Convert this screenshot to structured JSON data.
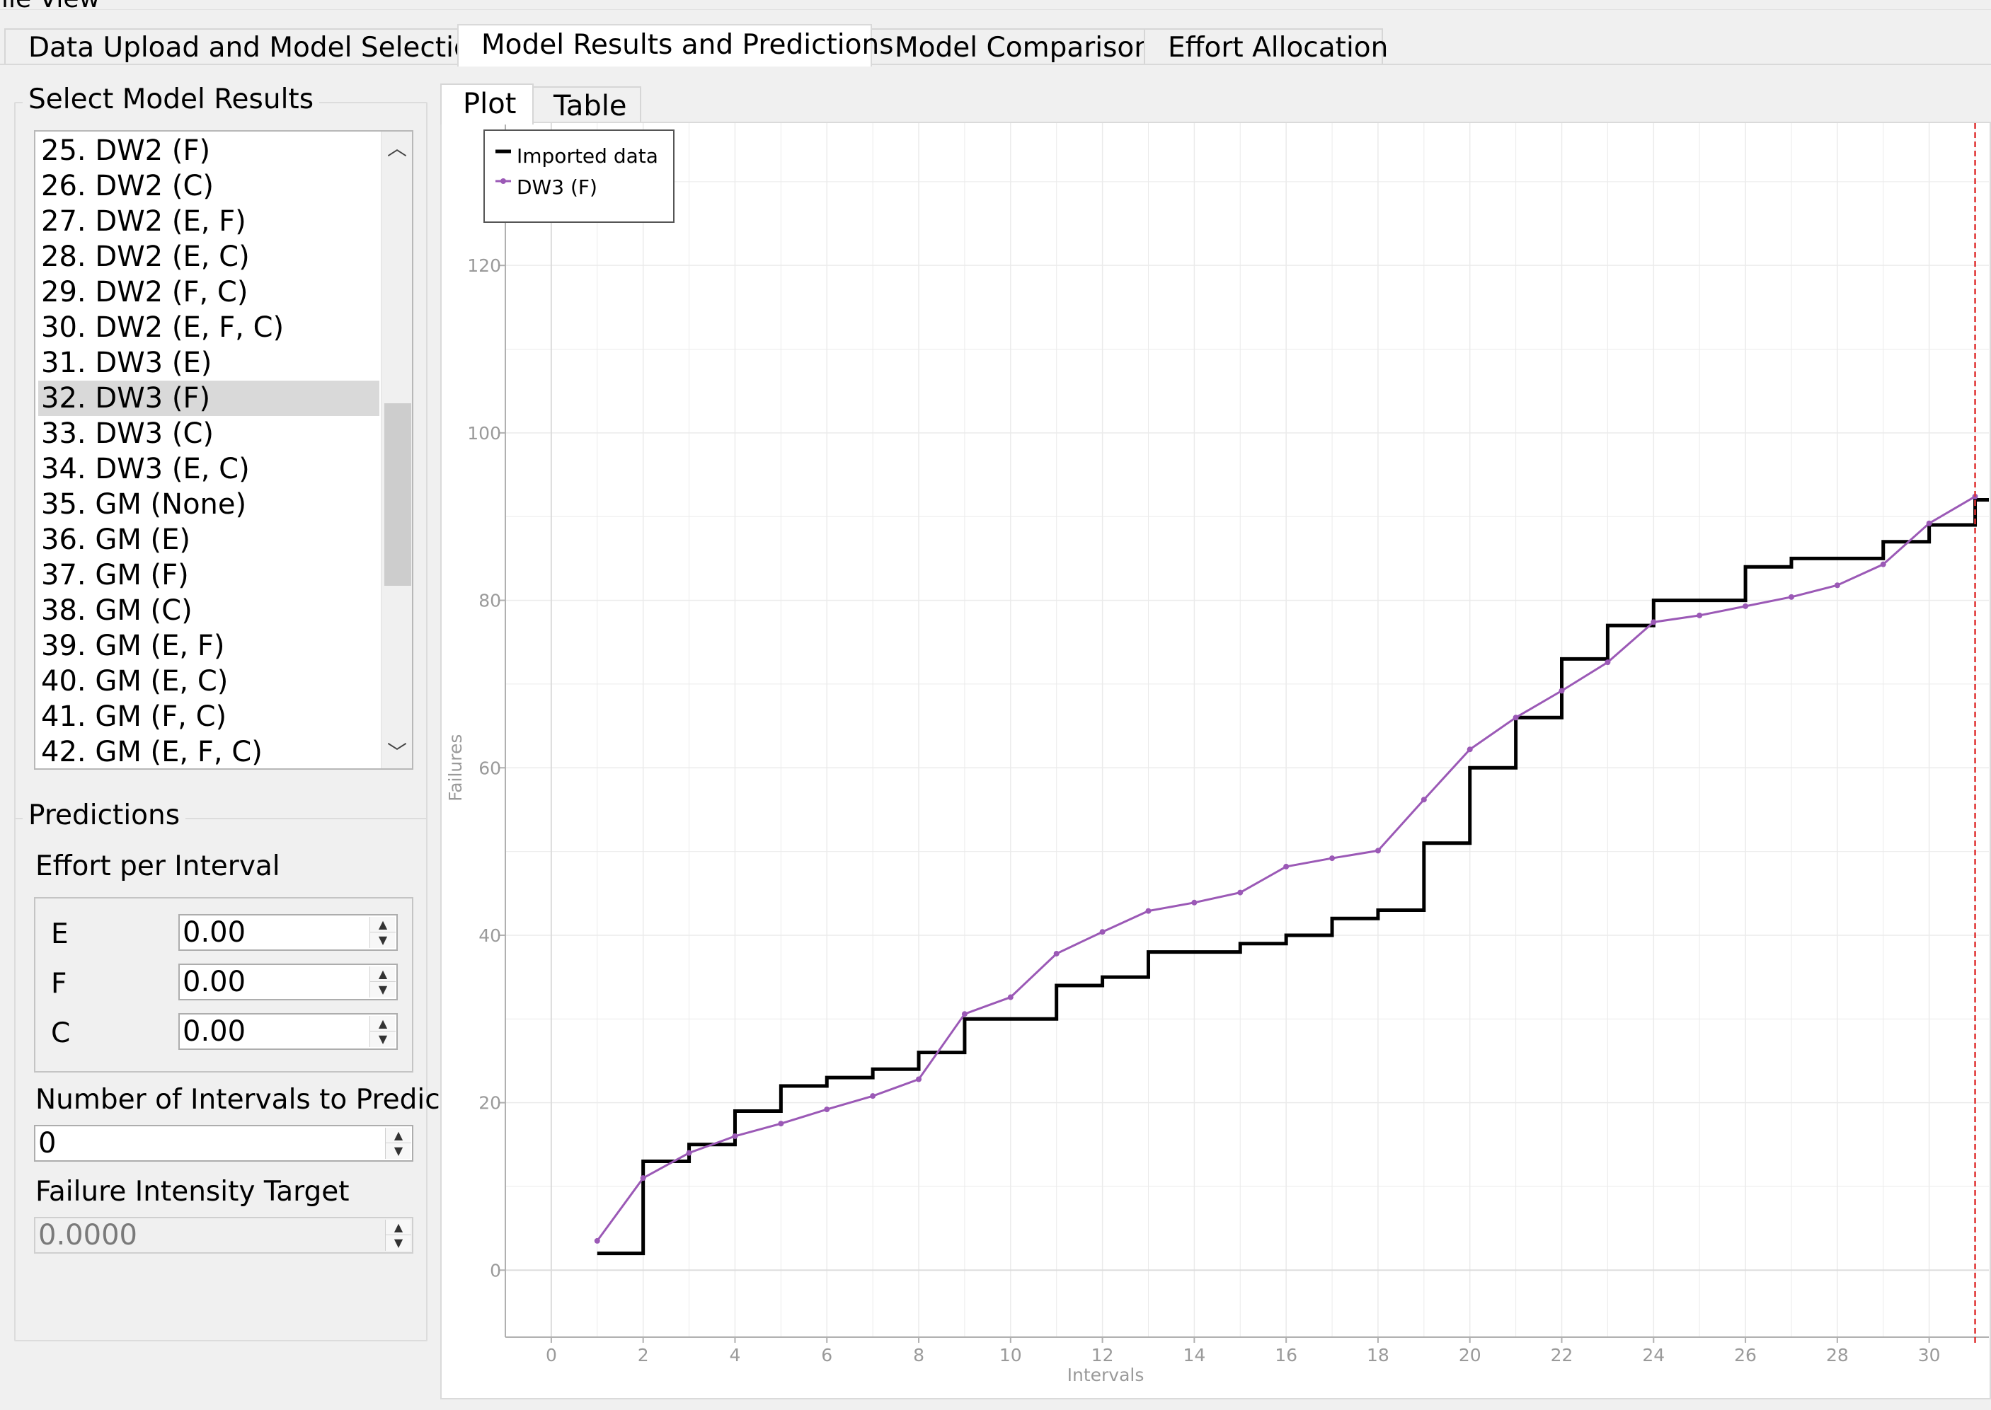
{
  "menubar": {
    "partial_text": "ile View"
  },
  "main_tabs": [
    {
      "label": "Data Upload and Model Selection",
      "active": false
    },
    {
      "label": "Model Results and Predictions",
      "active": true
    },
    {
      "label": "Model Comparison",
      "active": false
    },
    {
      "label": "Effort Allocation",
      "active": false
    }
  ],
  "model_results": {
    "title": "Select Model Results",
    "items": [
      "25. DW2 (F)",
      "26. DW2 (C)",
      "27. DW2 (E, F)",
      "28. DW2 (E, C)",
      "29. DW2 (F, C)",
      "30. DW2 (E, F, C)",
      "31. DW3 (E)",
      "32. DW3 (F)",
      "33. DW3 (C)",
      "34. DW3 (E, C)",
      "35. GM (None)",
      "36. GM (E)",
      "37. GM (F)",
      "38. GM (C)",
      "39. GM (E, F)",
      "40. GM (E, C)",
      "41. GM (F, C)",
      "42. GM (E, F, C)"
    ],
    "selected_index": 7
  },
  "predictions": {
    "title": "Predictions",
    "effort_label": "Effort per Interval",
    "effort_fields": [
      {
        "label": "E",
        "value": "0.00"
      },
      {
        "label": "F",
        "value": "0.00"
      },
      {
        "label": "C",
        "value": "0.00"
      }
    ],
    "intervals_label": "Number of Intervals to Predict",
    "intervals_value": "0",
    "intensity_label": "Failure Intensity Target",
    "intensity_value": "0.0000"
  },
  "sub_tabs": [
    {
      "label": "Plot",
      "active": true
    },
    {
      "label": "Table",
      "active": false
    }
  ],
  "colors": {
    "imported": "#000000",
    "model": "#9b59b6",
    "marker_line": "#e03030",
    "grid": "#ebebeb",
    "axis_text": "#9a9a9a"
  },
  "chart_data": {
    "type": "line",
    "xlabel": "Intervals",
    "ylabel": "Failures",
    "xlim": [
      -1,
      31.3
    ],
    "ylim": [
      -8,
      137
    ],
    "xticks": [
      0,
      2,
      4,
      6,
      8,
      10,
      12,
      14,
      16,
      18,
      20,
      22,
      24,
      26,
      28,
      30
    ],
    "yticks": [
      0,
      20,
      40,
      60,
      80,
      100,
      120
    ],
    "grid": true,
    "legend": "top-left",
    "vertical_marker": 31,
    "series": [
      {
        "name": "Imported data",
        "style": "step",
        "x": [
          1,
          2,
          3,
          4,
          5,
          6,
          7,
          8,
          9,
          10,
          11,
          12,
          13,
          14,
          15,
          16,
          17,
          18,
          19,
          20,
          21,
          22,
          23,
          24,
          25,
          26,
          27,
          28,
          29,
          30,
          31
        ],
        "y": [
          2,
          13,
          15,
          19,
          22,
          23,
          24,
          26,
          30,
          30,
          34,
          35,
          38,
          38,
          39,
          40,
          42,
          43,
          51,
          60,
          66,
          73,
          77,
          80,
          80,
          84,
          85,
          85,
          87,
          89,
          92
        ]
      },
      {
        "name": "DW3 (F)",
        "style": "line-markers",
        "x": [
          1,
          2,
          3,
          4,
          5,
          6,
          7,
          8,
          9,
          10,
          11,
          12,
          13,
          14,
          15,
          16,
          17,
          18,
          19,
          20,
          21,
          22,
          23,
          24,
          25,
          26,
          27,
          28,
          29,
          30,
          31
        ],
        "y": [
          3.5,
          11,
          14,
          16,
          17.5,
          19.2,
          20.8,
          22.8,
          30.6,
          32.6,
          37.8,
          40.4,
          42.9,
          43.9,
          45.1,
          48.2,
          49.2,
          50.1,
          56.2,
          62.2,
          66,
          69.2,
          72.6,
          77.4,
          78.2,
          79.3,
          80.4,
          81.8,
          84.3,
          89.2,
          92.4
        ]
      }
    ]
  }
}
